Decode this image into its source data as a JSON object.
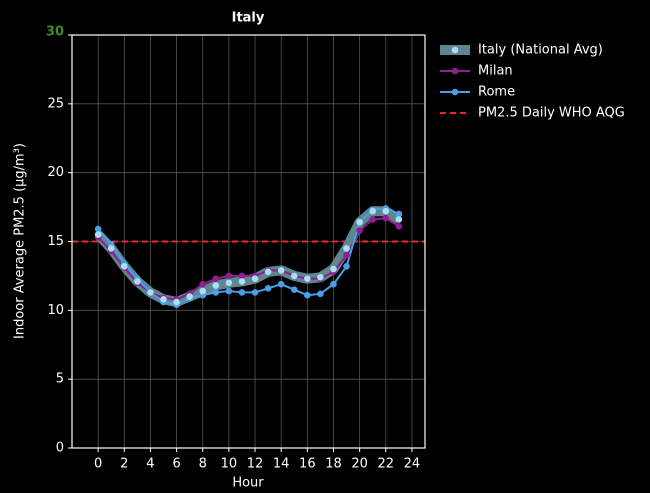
{
  "chart_data": {
    "type": "line",
    "title": "Italy",
    "x_label": "Hour",
    "y_label": "Indoor Average PM2.5 (μg/m³)",
    "x": [
      0,
      1,
      2,
      3,
      4,
      5,
      6,
      7,
      8,
      9,
      10,
      11,
      12,
      13,
      14,
      15,
      16,
      17,
      18,
      19,
      20,
      21,
      22,
      23
    ],
    "series": [
      {
        "name": "Italy (National Avg)",
        "color": "#a8e0f0",
        "band_color": "#5e8591",
        "values": [
          15.5,
          14.5,
          13.2,
          12.1,
          11.3,
          10.8,
          10.6,
          11.0,
          11.4,
          11.8,
          12.0,
          12.1,
          12.3,
          12.8,
          12.9,
          12.5,
          12.3,
          12.4,
          13.0,
          14.5,
          16.4,
          17.2,
          17.2,
          16.6
        ]
      },
      {
        "name": "Milan",
        "color": "#8e1f8e",
        "values": [
          15.3,
          14.3,
          13.1,
          12.0,
          11.3,
          10.9,
          10.8,
          11.2,
          11.9,
          12.3,
          12.5,
          12.5,
          12.5,
          12.9,
          12.9,
          12.5,
          12.3,
          12.3,
          12.8,
          14.0,
          15.8,
          16.6,
          16.7,
          16.1
        ]
      },
      {
        "name": "Rome",
        "color": "#4a9ee8",
        "values": [
          15.9,
          14.8,
          13.4,
          12.3,
          11.3,
          10.6,
          10.4,
          10.9,
          11.1,
          11.3,
          11.4,
          11.3,
          11.3,
          11.6,
          11.9,
          11.5,
          11.1,
          11.2,
          11.9,
          13.2,
          16.4,
          17.3,
          17.4,
          17.0
        ]
      }
    ],
    "reference_lines": [
      {
        "name": "PM2.5 Daily WHO AQG",
        "value": 15,
        "color": "#e8262b"
      }
    ],
    "xlim": [
      -2,
      25
    ],
    "xticks": [
      0,
      2,
      4,
      6,
      8,
      10,
      12,
      14,
      16,
      18,
      20,
      22,
      24
    ],
    "ylim": [
      0,
      30
    ],
    "yticks": [
      0,
      5,
      10,
      15,
      20,
      25,
      30
    ],
    "grid": true,
    "legend": "outside-right"
  }
}
